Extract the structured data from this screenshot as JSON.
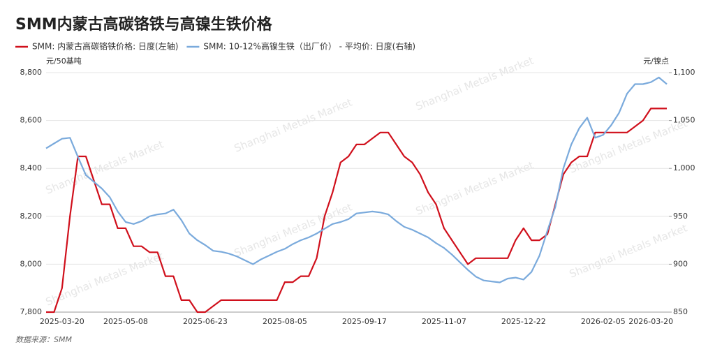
{
  "chart_data": {
    "type": "line",
    "title": "SMM内蒙古高碳铬铁与高镍生铁价格",
    "y_label": "元/50基吨",
    "y2_label": "元/镍点",
    "source": "数据来源：SMM",
    "watermark": "Shanghai Metals Market",
    "categories": [
      null,
      null,
      "2025-03-20",
      null,
      null,
      null,
      null,
      null,
      null,
      null,
      "2025-05-08",
      null,
      null,
      null,
      null,
      null,
      null,
      null,
      null,
      null,
      "2025-06-23",
      null,
      null,
      null,
      null,
      null,
      null,
      null,
      null,
      null,
      "2025-08-05",
      null,
      null,
      null,
      null,
      null,
      null,
      null,
      null,
      null,
      "2025-09-17",
      null,
      null,
      null,
      null,
      null,
      null,
      null,
      null,
      null,
      "2025-11-07",
      null,
      null,
      null,
      null,
      null,
      null,
      null,
      null,
      null,
      "2025-12-22",
      null,
      null,
      null,
      null,
      null,
      null,
      null,
      null,
      null,
      "2026-02-05",
      null,
      null,
      null,
      null,
      null,
      "2026-03-20",
      null,
      null
    ],
    "series": [
      {
        "name": "SMM: 内蒙古高碳铬铁价格: 日度(左轴)",
        "color": "#d0101c",
        "values": [
          7800,
          7800,
          7900,
          8200,
          8450,
          8450,
          8350,
          8250,
          8250,
          8150,
          8150,
          8075,
          8075,
          8050,
          8050,
          7950,
          7950,
          7850,
          7850,
          7800,
          7800,
          7825,
          7850,
          7850,
          7850,
          7850,
          7850,
          7850,
          7850,
          7850,
          7925,
          7925,
          7950,
          7950,
          8025,
          8200,
          8300,
          8425,
          8450,
          8500,
          8500,
          8525,
          8550,
          8550,
          8500,
          8450,
          8425,
          8375,
          8300,
          8250,
          8150,
          8100,
          8050,
          8000,
          8025,
          8025,
          8025,
          8025,
          8025,
          8100,
          8150,
          8100,
          8100,
          8125,
          8250,
          8375,
          8425,
          8450,
          8450,
          8550,
          8550,
          8550,
          8550,
          8550,
          8575,
          8600,
          8650,
          8650,
          8650
        ]
      },
      {
        "name": "SMM: 10-12%高镍生铁（出厂价） - 平均价: 日度(右轴)",
        "color": "#7aaadc",
        "axis": "y2",
        "values": [
          1021,
          1026,
          1031,
          1032,
          1012,
          993,
          986,
          979,
          970,
          955,
          944,
          942,
          945,
          950,
          952,
          953,
          957,
          946,
          932,
          925,
          920,
          914,
          913,
          911,
          908,
          904,
          900,
          905,
          909,
          913,
          916,
          921,
          925,
          928,
          932,
          937,
          942,
          944,
          947,
          953,
          954,
          955,
          954,
          952,
          945,
          939,
          936,
          932,
          928,
          922,
          917,
          910,
          902,
          894,
          887,
          883,
          882,
          881,
          885,
          886,
          884,
          892,
          909,
          935,
          960,
          1000,
          1025,
          1042,
          1053,
          1032,
          1035,
          1045,
          1058,
          1078,
          1088,
          1088,
          1090,
          1095,
          1088
        ]
      }
    ],
    "ylim": [
      7800,
      8800
    ],
    "yticks": [
      {
        "value": 7800,
        "label": "7,800"
      },
      {
        "value": 8000,
        "label": "8,000"
      },
      {
        "value": 8200,
        "label": "8,200"
      },
      {
        "value": 8400,
        "label": "8,400"
      },
      {
        "value": 8600,
        "label": "8,600"
      },
      {
        "value": 8800,
        "label": "8,800"
      }
    ],
    "y2lim": [
      850,
      1100
    ],
    "y2ticks": [
      850,
      900,
      950,
      {
        "value": 1000,
        "label": "1,000"
      },
      {
        "value": 1050,
        "label": "1,050"
      },
      {
        "value": 1100,
        "label": "1,100"
      }
    ],
    "grid": true
  }
}
